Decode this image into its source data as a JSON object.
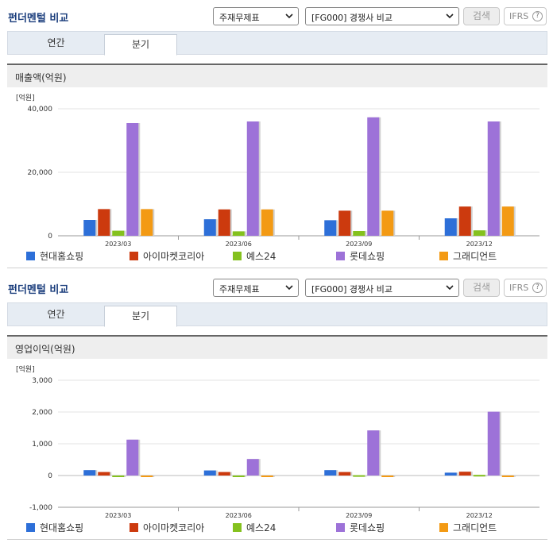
{
  "sections": [
    {
      "title": "펀더멘털 비교",
      "select_main": "주재무제표",
      "select_compare": "[FG000] 경쟁사 비교",
      "search_label": "검색",
      "ifrs_label": "IFRS",
      "ifrs_help": "?",
      "tabs": [
        {
          "label": "연간"
        },
        {
          "label": "분기"
        }
      ],
      "active_tab": 1,
      "panel_title": "매출액(억원)",
      "unit_label": "[억원]"
    },
    {
      "title": "펀더멘털 비교",
      "select_main": "주재무제표",
      "select_compare": "[FG000] 경쟁사 비교",
      "search_label": "검색",
      "ifrs_label": "IFRS",
      "ifrs_help": "?",
      "tabs": [
        {
          "label": "연간"
        },
        {
          "label": "분기"
        }
      ],
      "active_tab": 1,
      "panel_title": "영업이익(억원)",
      "unit_label": "[억원]"
    }
  ],
  "series_colors": [
    "#2d6fd8",
    "#cc3a0e",
    "#84c11e",
    "#9d72d8",
    "#f39a14"
  ],
  "chart_data": [
    {
      "type": "bar",
      "title": "매출액(억원)",
      "ylabel": "[억원]",
      "categories": [
        "2023/03",
        "2023/06",
        "2023/09",
        "2023/12"
      ],
      "ylim": [
        0,
        40000
      ],
      "yticks": [
        0,
        20000,
        40000
      ],
      "ytick_labels": [
        "0",
        "20,000",
        "40,000"
      ],
      "series": [
        {
          "name": "현대홈쇼핑",
          "values": [
            5000,
            5200,
            4900,
            5500
          ]
        },
        {
          "name": "아이마켓코리아",
          "values": [
            8400,
            8300,
            7900,
            9200
          ]
        },
        {
          "name": "예스24",
          "values": [
            1600,
            1400,
            1500,
            1700
          ]
        },
        {
          "name": "롯데쇼핑",
          "values": [
            35500,
            36000,
            37300,
            36000
          ]
        },
        {
          "name": "그래디언트",
          "values": [
            8400,
            8300,
            7900,
            9200
          ]
        }
      ]
    },
    {
      "type": "bar",
      "title": "영업이익(억원)",
      "ylabel": "[억원]",
      "categories": [
        "2023/03",
        "2023/06",
        "2023/09",
        "2023/12"
      ],
      "ylim": [
        -1000,
        3000
      ],
      "yticks": [
        -1000,
        0,
        1000,
        2000,
        3000
      ],
      "ytick_labels": [
        "-1,000",
        "0",
        "1,000",
        "2,000",
        "3,000"
      ],
      "series": [
        {
          "name": "현대홈쇼핑",
          "values": [
            170,
            160,
            170,
            90
          ]
        },
        {
          "name": "아이마켓코리아",
          "values": [
            110,
            110,
            110,
            120
          ]
        },
        {
          "name": "예스24",
          "values": [
            -30,
            -10,
            10,
            20
          ]
        },
        {
          "name": "롯데쇼핑",
          "values": [
            1130,
            520,
            1420,
            2010
          ]
        },
        {
          "name": "그래디언트",
          "values": [
            -50,
            -40,
            0,
            0
          ]
        }
      ]
    }
  ]
}
